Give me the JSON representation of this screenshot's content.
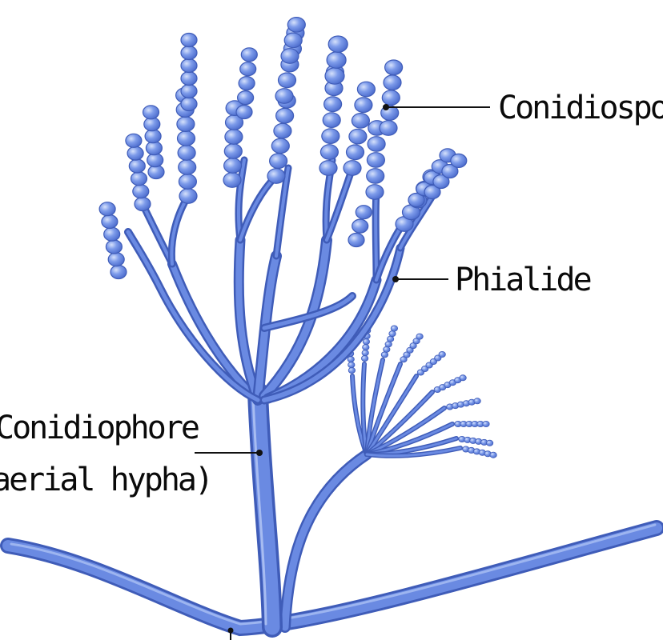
{
  "labels": {
    "conidiospore": "Conidiospor",
    "phialide": "Phialide",
    "conidiophore_line1": "Conidiophore",
    "conidiophore_line2": "aerial hypha)"
  },
  "colors": {
    "background": "#ffffff",
    "hypha_fill": "#5e7fdc",
    "hypha_outline": "#3f5cb8",
    "spore_fill": "#6e8fe6",
    "spore_highlight": "#b9cbf6",
    "leader_line": "#111111"
  }
}
